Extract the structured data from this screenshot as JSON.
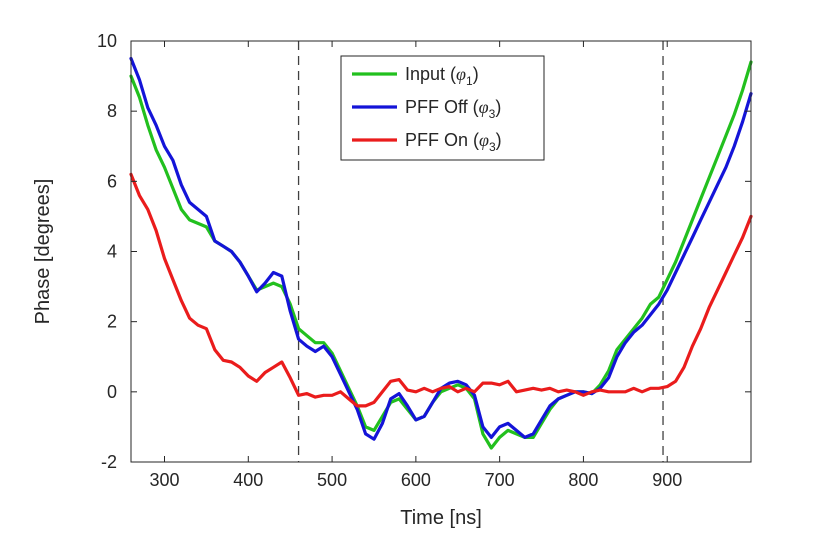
{
  "chart_data": {
    "type": "line",
    "title": "",
    "xlabel": "Time [ns]",
    "ylabel": "Phase [degrees]",
    "xlim": [
      260,
      1000
    ],
    "ylim": [
      -2,
      10
    ],
    "x_ticks": [
      300,
      400,
      500,
      600,
      700,
      800,
      900
    ],
    "y_ticks": [
      -2,
      0,
      2,
      4,
      6,
      8,
      10
    ],
    "grid": false,
    "legend_position": "top-center",
    "vertical_markers": [
      460,
      895
    ],
    "series": [
      {
        "name": "Input",
        "legend_label": "Input (",
        "symbol": "φ",
        "subscript": "1",
        "color": "#22c01e",
        "points": [
          [
            260,
            9.0
          ],
          [
            270,
            8.4
          ],
          [
            280,
            7.6
          ],
          [
            290,
            6.9
          ],
          [
            300,
            6.4
          ],
          [
            310,
            5.8
          ],
          [
            320,
            5.2
          ],
          [
            330,
            4.9
          ],
          [
            340,
            4.8
          ],
          [
            350,
            4.7
          ],
          [
            360,
            4.3
          ],
          [
            370,
            4.15
          ],
          [
            380,
            4.0
          ],
          [
            390,
            3.7
          ],
          [
            400,
            3.3
          ],
          [
            410,
            2.9
          ],
          [
            420,
            3.0
          ],
          [
            430,
            3.1
          ],
          [
            440,
            3.0
          ],
          [
            450,
            2.5
          ],
          [
            460,
            1.8
          ],
          [
            470,
            1.6
          ],
          [
            480,
            1.4
          ],
          [
            490,
            1.4
          ],
          [
            500,
            1.1
          ],
          [
            510,
            0.6
          ],
          [
            520,
            0.1
          ],
          [
            530,
            -0.4
          ],
          [
            540,
            -1.0
          ],
          [
            550,
            -1.1
          ],
          [
            560,
            -0.7
          ],
          [
            570,
            -0.3
          ],
          [
            580,
            -0.2
          ],
          [
            590,
            -0.5
          ],
          [
            600,
            -0.8
          ],
          [
            610,
            -0.7
          ],
          [
            620,
            -0.3
          ],
          [
            630,
            0.0
          ],
          [
            640,
            0.1
          ],
          [
            650,
            0.2
          ],
          [
            660,
            0.1
          ],
          [
            670,
            -0.2
          ],
          [
            680,
            -1.2
          ],
          [
            690,
            -1.6
          ],
          [
            700,
            -1.3
          ],
          [
            710,
            -1.1
          ],
          [
            720,
            -1.2
          ],
          [
            730,
            -1.3
          ],
          [
            740,
            -1.3
          ],
          [
            750,
            -0.9
          ],
          [
            760,
            -0.5
          ],
          [
            770,
            -0.2
          ],
          [
            780,
            -0.1
          ],
          [
            790,
            0.0
          ],
          [
            800,
            0.0
          ],
          [
            810,
            -0.05
          ],
          [
            820,
            0.2
          ],
          [
            830,
            0.6
          ],
          [
            840,
            1.2
          ],
          [
            850,
            1.5
          ],
          [
            860,
            1.8
          ],
          [
            870,
            2.1
          ],
          [
            880,
            2.5
          ],
          [
            890,
            2.7
          ],
          [
            900,
            3.2
          ],
          [
            910,
            3.7
          ],
          [
            920,
            4.3
          ],
          [
            930,
            4.9
          ],
          [
            940,
            5.5
          ],
          [
            950,
            6.1
          ],
          [
            960,
            6.7
          ],
          [
            970,
            7.3
          ],
          [
            980,
            7.9
          ],
          [
            990,
            8.6
          ],
          [
            1000,
            9.4
          ]
        ]
      },
      {
        "name": "PFF Off",
        "legend_label": "PFF Off (",
        "symbol": "φ",
        "subscript": "3",
        "color": "#1414d8",
        "points": [
          [
            260,
            9.5
          ],
          [
            270,
            8.9
          ],
          [
            280,
            8.1
          ],
          [
            290,
            7.6
          ],
          [
            300,
            7.0
          ],
          [
            310,
            6.6
          ],
          [
            320,
            5.9
          ],
          [
            330,
            5.4
          ],
          [
            340,
            5.2
          ],
          [
            350,
            5.0
          ],
          [
            360,
            4.3
          ],
          [
            370,
            4.15
          ],
          [
            380,
            4.0
          ],
          [
            390,
            3.7
          ],
          [
            400,
            3.3
          ],
          [
            410,
            2.85
          ],
          [
            420,
            3.1
          ],
          [
            430,
            3.4
          ],
          [
            440,
            3.3
          ],
          [
            450,
            2.3
          ],
          [
            460,
            1.5
          ],
          [
            470,
            1.3
          ],
          [
            480,
            1.15
          ],
          [
            490,
            1.3
          ],
          [
            500,
            1.0
          ],
          [
            510,
            0.5
          ],
          [
            520,
            0.0
          ],
          [
            530,
            -0.5
          ],
          [
            540,
            -1.2
          ],
          [
            550,
            -1.35
          ],
          [
            560,
            -0.9
          ],
          [
            570,
            -0.2
          ],
          [
            580,
            -0.05
          ],
          [
            590,
            -0.4
          ],
          [
            600,
            -0.8
          ],
          [
            610,
            -0.7
          ],
          [
            620,
            -0.3
          ],
          [
            630,
            0.1
          ],
          [
            640,
            0.25
          ],
          [
            650,
            0.3
          ],
          [
            660,
            0.2
          ],
          [
            670,
            -0.1
          ],
          [
            680,
            -1.0
          ],
          [
            690,
            -1.3
          ],
          [
            700,
            -1.0
          ],
          [
            710,
            -0.9
          ],
          [
            720,
            -1.1
          ],
          [
            730,
            -1.3
          ],
          [
            740,
            -1.2
          ],
          [
            750,
            -0.8
          ],
          [
            760,
            -0.4
          ],
          [
            770,
            -0.2
          ],
          [
            780,
            -0.1
          ],
          [
            790,
            0.0
          ],
          [
            800,
            0.0
          ],
          [
            810,
            -0.05
          ],
          [
            820,
            0.1
          ],
          [
            830,
            0.4
          ],
          [
            840,
            1.0
          ],
          [
            850,
            1.4
          ],
          [
            860,
            1.7
          ],
          [
            870,
            1.9
          ],
          [
            880,
            2.2
          ],
          [
            890,
            2.5
          ],
          [
            900,
            2.9
          ],
          [
            910,
            3.4
          ],
          [
            920,
            3.9
          ],
          [
            930,
            4.4
          ],
          [
            940,
            4.9
          ],
          [
            950,
            5.4
          ],
          [
            960,
            5.9
          ],
          [
            970,
            6.4
          ],
          [
            980,
            7.0
          ],
          [
            990,
            7.7
          ],
          [
            1000,
            8.5
          ]
        ]
      },
      {
        "name": "PFF On",
        "legend_label": "PFF On (",
        "symbol": "φ",
        "subscript": "3",
        "color": "#ea1c1c",
        "points": [
          [
            260,
            6.2
          ],
          [
            270,
            5.6
          ],
          [
            280,
            5.2
          ],
          [
            290,
            4.6
          ],
          [
            300,
            3.8
          ],
          [
            310,
            3.2
          ],
          [
            320,
            2.6
          ],
          [
            330,
            2.1
          ],
          [
            340,
            1.9
          ],
          [
            350,
            1.8
          ],
          [
            360,
            1.2
          ],
          [
            370,
            0.9
          ],
          [
            380,
            0.85
          ],
          [
            390,
            0.7
          ],
          [
            400,
            0.45
          ],
          [
            410,
            0.3
          ],
          [
            420,
            0.55
          ],
          [
            430,
            0.7
          ],
          [
            440,
            0.85
          ],
          [
            450,
            0.4
          ],
          [
            460,
            -0.1
          ],
          [
            470,
            -0.05
          ],
          [
            480,
            -0.15
          ],
          [
            490,
            -0.1
          ],
          [
            500,
            -0.1
          ],
          [
            510,
            0.0
          ],
          [
            520,
            -0.2
          ],
          [
            530,
            -0.4
          ],
          [
            540,
            -0.4
          ],
          [
            550,
            -0.3
          ],
          [
            560,
            0.0
          ],
          [
            570,
            0.3
          ],
          [
            580,
            0.35
          ],
          [
            590,
            0.05
          ],
          [
            600,
            0.0
          ],
          [
            610,
            0.1
          ],
          [
            620,
            0.0
          ],
          [
            630,
            0.1
          ],
          [
            640,
            0.15
          ],
          [
            650,
            0.0
          ],
          [
            660,
            0.1
          ],
          [
            670,
            0.0
          ],
          [
            680,
            0.25
          ],
          [
            690,
            0.25
          ],
          [
            700,
            0.2
          ],
          [
            710,
            0.3
          ],
          [
            720,
            0.0
          ],
          [
            730,
            0.05
          ],
          [
            740,
            0.1
          ],
          [
            750,
            0.05
          ],
          [
            760,
            0.1
          ],
          [
            770,
            0.0
          ],
          [
            780,
            0.05
          ],
          [
            790,
            0.0
          ],
          [
            800,
            -0.1
          ],
          [
            810,
            0.0
          ],
          [
            820,
            0.05
          ],
          [
            830,
            0.0
          ],
          [
            840,
            0.0
          ],
          [
            850,
            0.0
          ],
          [
            860,
            0.1
          ],
          [
            870,
            0.0
          ],
          [
            880,
            0.1
          ],
          [
            890,
            0.1
          ],
          [
            900,
            0.15
          ],
          [
            910,
            0.3
          ],
          [
            920,
            0.7
          ],
          [
            930,
            1.3
          ],
          [
            940,
            1.8
          ],
          [
            950,
            2.4
          ],
          [
            960,
            2.9
          ],
          [
            970,
            3.4
          ],
          [
            980,
            3.9
          ],
          [
            990,
            4.4
          ],
          [
            1000,
            5.0
          ]
        ]
      }
    ]
  }
}
